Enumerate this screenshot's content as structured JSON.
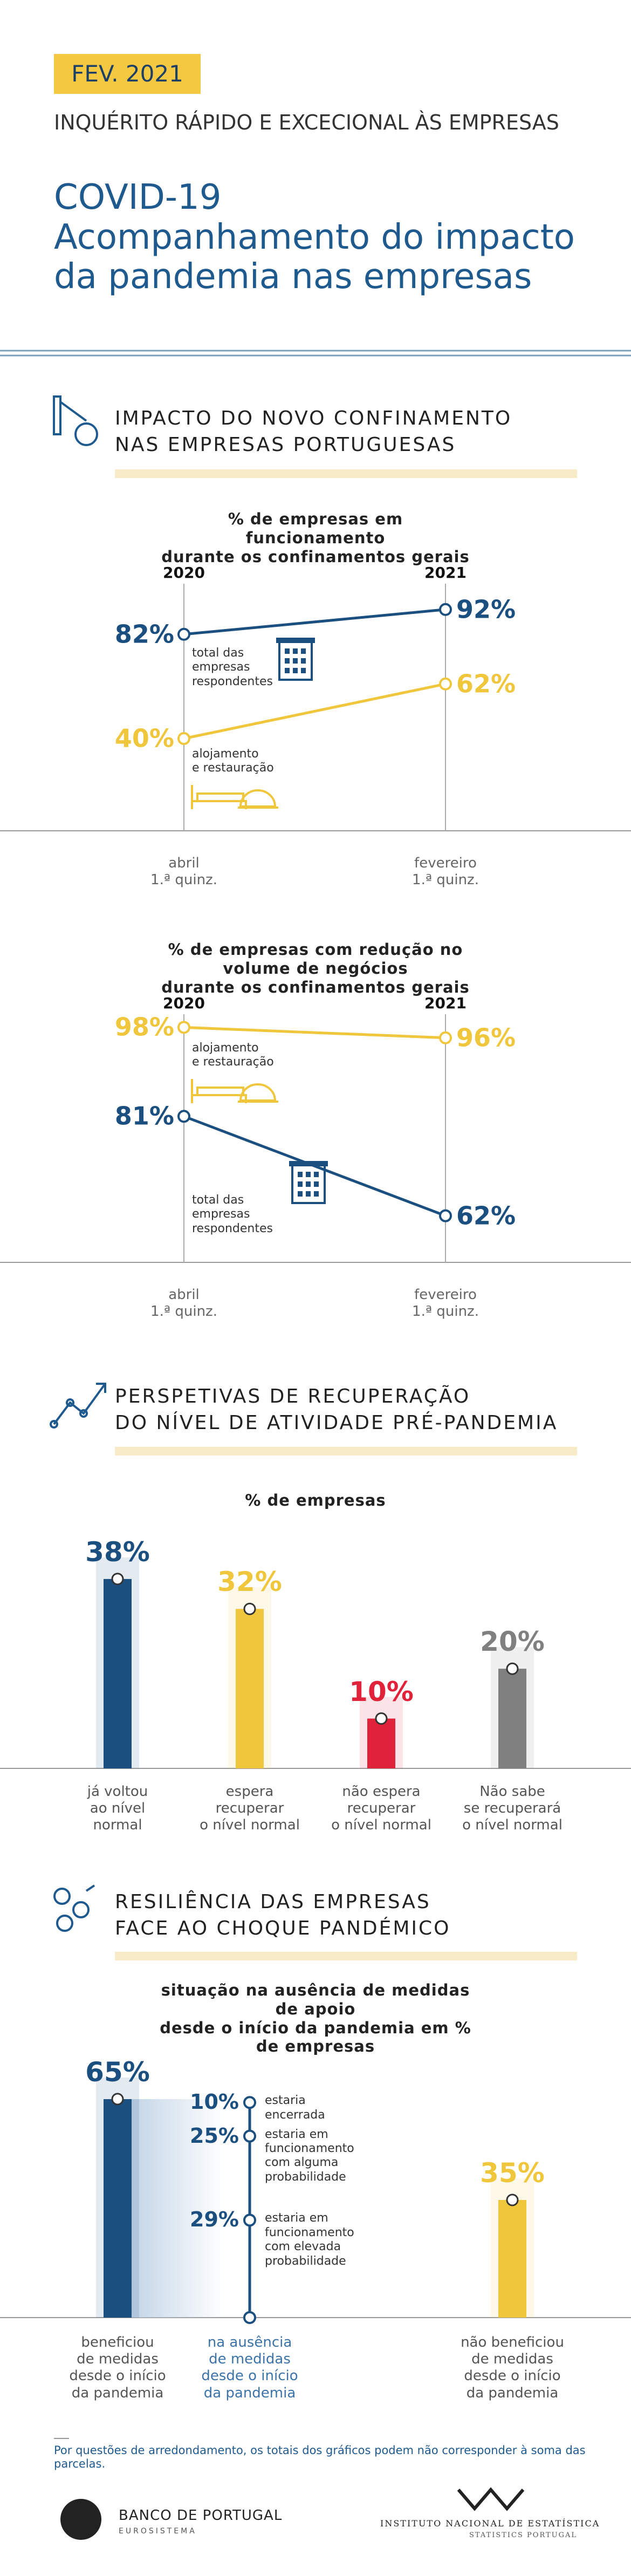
{
  "header": {
    "badge": "FEV. 2021",
    "kicker": "INQUÉRITO RÁPIDO E EXCECIONAL ÀS EMPRESAS",
    "title": "COVID-19\nAcompanhamento do impacto\nda pandemia nas empresas"
  },
  "sections": [
    {
      "heading": "IMPACTO DO NOVO CONFINAMENTO\nNAS EMPRESAS PORTUGUESAS"
    },
    {
      "heading": "PERSPETIVAS DE RECUPERAÇÃO\nDO NÍVEL DE ATIVIDADE PRÉ-PANDEMIA"
    },
    {
      "heading": "RESILIÊNCIA DAS EMPRESAS\nFACE AO CHOQUE PANDÉMICO"
    }
  ],
  "chart_data": [
    {
      "type": "line",
      "title": "% de empresas em funcionamento\ndurante os confinamentos gerais",
      "periods": [
        "2020",
        "2021"
      ],
      "categories": [
        "abril\n1.ª quinz.",
        "fevereiro\n1.ª quinz."
      ],
      "series": [
        {
          "name": "total das\nempresas\nrespondentes",
          "color": "#1b4f80",
          "values": [
            82,
            92
          ],
          "value_labels": [
            "82%",
            "92%"
          ]
        },
        {
          "name": "alojamento\ne restauração",
          "color": "#f0c63c",
          "values": [
            40,
            62
          ],
          "value_labels": [
            "40%",
            "62%"
          ]
        }
      ]
    },
    {
      "type": "line",
      "title": "% de empresas com redução no volume de negócios\ndurante os confinamentos gerais",
      "periods": [
        "2020",
        "2021"
      ],
      "categories": [
        "abril\n1.ª quinz.",
        "fevereiro\n1.ª quinz."
      ],
      "series": [
        {
          "name": "total das\nempresas\nrespondentes",
          "color": "#1b4f80",
          "values": [
            81,
            62
          ],
          "value_labels": [
            "81%",
            "62%"
          ]
        },
        {
          "name": "alojamento\ne restauração",
          "color": "#f0c63c",
          "values": [
            98,
            96
          ],
          "value_labels": [
            "98%",
            "96%"
          ]
        }
      ]
    },
    {
      "type": "bar",
      "title": "% de empresas",
      "categories": [
        "já voltou\nao nível\nnormal",
        "espera\nrecuperar\no nível normal",
        "não espera\nrecuperar\no nível normal",
        "Não sabe\nse recuperará\no nível normal"
      ],
      "values": [
        38,
        32,
        10,
        20
      ],
      "value_labels": [
        "38%",
        "32%",
        "10%",
        "20%"
      ],
      "colors": [
        "#1b4f80",
        "#f0c63c",
        "#e0223a",
        "#808080"
      ]
    },
    {
      "type": "bar",
      "title": "situação na ausência de medidas de apoio\ndesde o início da pandemia em % de empresas",
      "categories": [
        "beneficiou\nde medidas\ndesde o início\nda pandemia",
        "na ausência\nde medidas\ndesde o início\nda pandemia",
        "não beneficiou\nde medidas\ndesde o início\nda pandemia"
      ],
      "values": [
        65,
        null,
        35
      ],
      "value_labels": [
        "65%",
        null,
        "35%"
      ],
      "colors": [
        "#1b4f80",
        "#1b4f80",
        "#f0c63c"
      ],
      "breakdown": [
        {
          "label": "estaria\nencerrada",
          "value": 10,
          "value_label": "10%"
        },
        {
          "label": "estaria em\nfuncionamento\ncom alguma\nprobabilidade",
          "value": 25,
          "value_label": "25%"
        },
        {
          "label": "estaria em\nfuncionamento\ncom elevada\nprobabilidade",
          "value": 29,
          "value_label": "29%"
        }
      ]
    }
  ],
  "footnote": "Por questões de arredondamento, os totais dos gráficos podem não corresponder à soma das parcelas.",
  "logos": {
    "left": "BANCO DE PORTUGAL",
    "left_sub": "EUROSISTEMA",
    "right": "INSTITUTO NACIONAL DE ESTATÍSTICA",
    "right_sub": "STATISTICS PORTUGAL"
  }
}
